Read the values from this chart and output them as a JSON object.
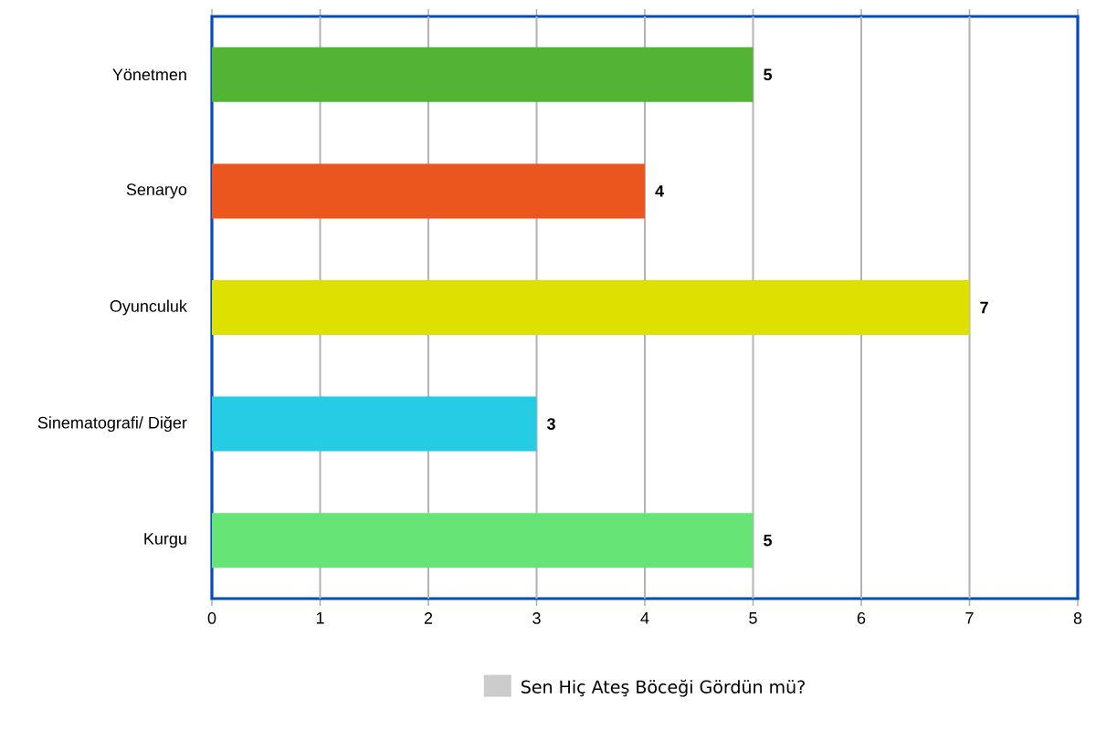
{
  "chart_data": {
    "type": "bar",
    "orientation": "horizontal",
    "categories": [
      "Yönetmen",
      "Senaryo",
      "Oyunculuk",
      "Sinematografi/ Diğer",
      "Kurgu"
    ],
    "series": [
      {
        "name": "Sen Hiç Ateş Böceği Gördün mü?",
        "color": "#cccccc",
        "colors": [
          "#52b335",
          "#eb561e",
          "#dee000",
          "#25cce4",
          "#66e475"
        ],
        "values": [
          5,
          4,
          7,
          3,
          5
        ]
      }
    ],
    "xlim": [
      0,
      8
    ],
    "xticks": [
      0,
      1,
      2,
      3,
      4,
      5,
      6,
      7,
      8
    ],
    "grid": "x",
    "legend": "bottom",
    "data_labels": true
  }
}
